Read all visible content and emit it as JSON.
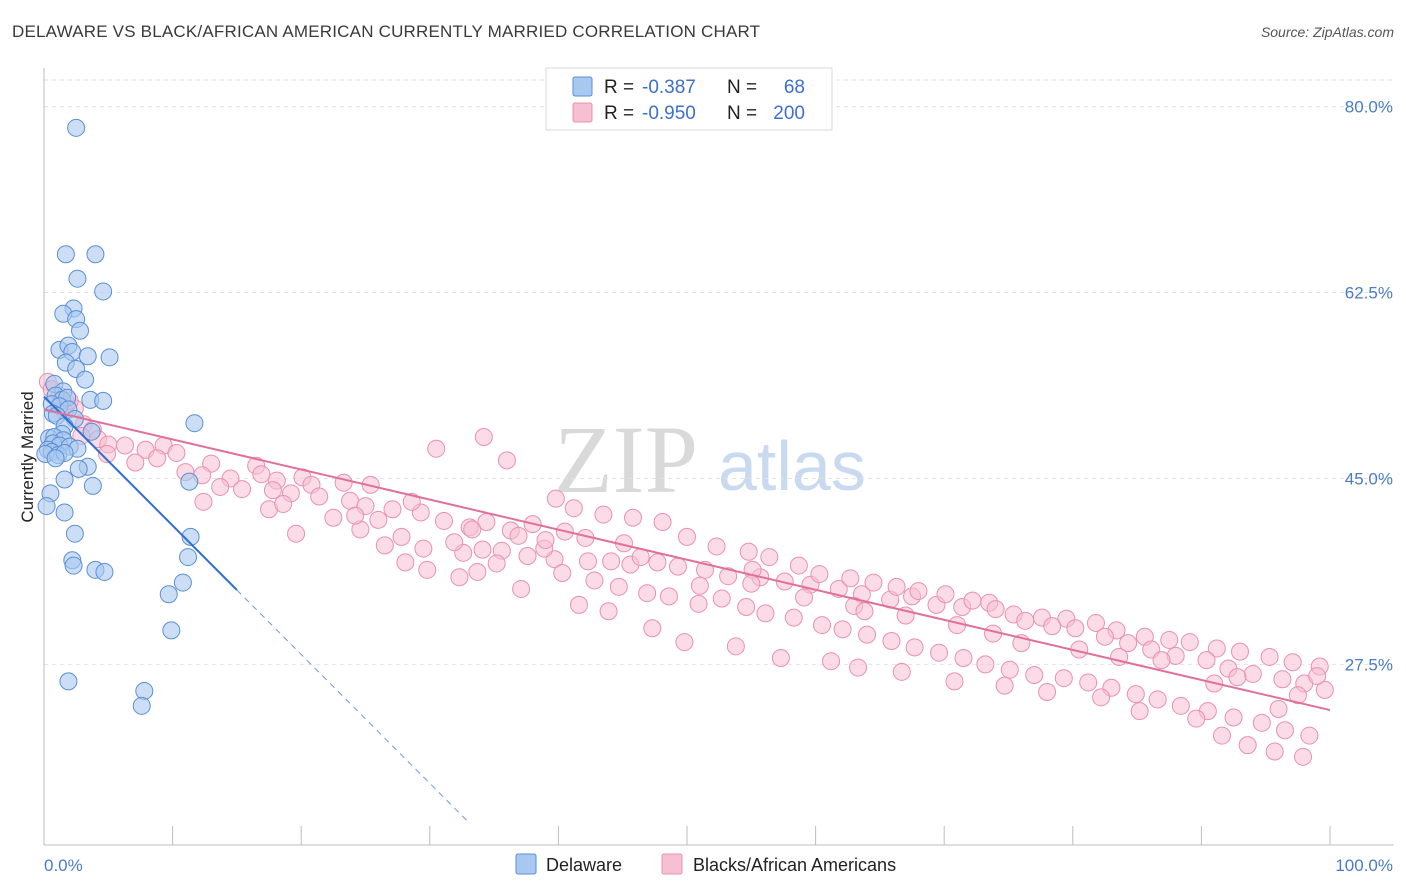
{
  "header": {
    "title": "DELAWARE VS BLACK/AFRICAN AMERICAN CURRENTLY MARRIED CORRELATION CHART",
    "source": "Source: ZipAtlas.com"
  },
  "watermark": {
    "zip": "ZIP",
    "atlas": "atlas"
  },
  "colors": {
    "blue_fill": "#a9c8ef",
    "blue_stroke": "#5b8fd6",
    "blue_line": "#2e6fd0",
    "pink_fill": "#f7bfd2",
    "pink_stroke": "#e990b0",
    "pink_line": "#e0709a",
    "grid": "#e2e2e2",
    "tick_label": "#4a7cc7"
  },
  "legend": {
    "rows": [
      {
        "r_label": "R =",
        "r_value": "-0.387",
        "n_label": "N =",
        "n_value": "68"
      },
      {
        "r_label": "R =",
        "r_value": "-0.950",
        "n_label": "N =",
        "n_value": "200"
      }
    ]
  },
  "chart_data": {
    "type": "scatter",
    "title": "DELAWARE VS BLACK/AFRICAN AMERICAN CURRENTLY MARRIED CORRELATION CHART",
    "ylabel": "Currently Married",
    "xlabel": "",
    "x_tick_labels": [
      "0.0%",
      "100.0%"
    ],
    "y_tick_labels": [
      "80.0%",
      "62.5%",
      "45.0%",
      "27.5%"
    ],
    "y_ticks": [
      80.0,
      62.5,
      45.0,
      27.5
    ],
    "xlim": [
      0,
      100
    ],
    "ylim": [
      10.5,
      82.5
    ],
    "grid": true,
    "legend_position": "top-center",
    "series": [
      {
        "name": "Delaware",
        "r": -0.387,
        "n": 68,
        "trend": {
          "x0": 0.0,
          "y0": 52.7,
          "x1": 15.0,
          "y1": 34.5,
          "dash_to_x": 33.0
        },
        "points": [
          [
            2.5,
            78.0
          ],
          [
            1.7,
            66.1
          ],
          [
            4.0,
            66.1
          ],
          [
            2.6,
            63.8
          ],
          [
            4.6,
            62.6
          ],
          [
            2.3,
            61.0
          ],
          [
            1.5,
            60.5
          ],
          [
            2.5,
            60.0
          ],
          [
            2.8,
            58.9
          ],
          [
            1.2,
            57.1
          ],
          [
            1.9,
            57.5
          ],
          [
            2.2,
            56.9
          ],
          [
            3.4,
            56.5
          ],
          [
            5.1,
            56.4
          ],
          [
            1.7,
            55.9
          ],
          [
            2.5,
            55.3
          ],
          [
            3.2,
            54.3
          ],
          [
            0.8,
            53.9
          ],
          [
            1.5,
            53.2
          ],
          [
            0.9,
            52.8
          ],
          [
            1.4,
            52.4
          ],
          [
            1.8,
            52.6
          ],
          [
            3.6,
            52.4
          ],
          [
            4.6,
            52.3
          ],
          [
            0.6,
            52.0
          ],
          [
            1.2,
            51.8
          ],
          [
            1.9,
            51.5
          ],
          [
            0.7,
            51.1
          ],
          [
            1.0,
            50.9
          ],
          [
            2.4,
            50.6
          ],
          [
            11.7,
            50.2
          ],
          [
            1.6,
            49.9
          ],
          [
            3.7,
            49.4
          ],
          [
            1.4,
            49.2
          ],
          [
            0.4,
            48.8
          ],
          [
            0.8,
            48.9
          ],
          [
            1.5,
            48.6
          ],
          [
            0.7,
            48.3
          ],
          [
            1.2,
            48.1
          ],
          [
            2.0,
            48.0
          ],
          [
            2.6,
            47.8
          ],
          [
            0.3,
            47.7
          ],
          [
            0.6,
            47.5
          ],
          [
            0.1,
            47.3
          ],
          [
            1.1,
            47.2
          ],
          [
            1.6,
            47.4
          ],
          [
            0.9,
            46.9
          ],
          [
            3.4,
            46.1
          ],
          [
            2.7,
            45.9
          ],
          [
            1.6,
            44.9
          ],
          [
            11.3,
            44.7
          ],
          [
            3.8,
            44.3
          ],
          [
            0.5,
            43.6
          ],
          [
            0.2,
            42.4
          ],
          [
            1.6,
            41.8
          ],
          [
            2.4,
            39.8
          ],
          [
            11.4,
            39.5
          ],
          [
            11.2,
            37.6
          ],
          [
            2.2,
            37.3
          ],
          [
            2.3,
            36.8
          ],
          [
            4.0,
            36.4
          ],
          [
            4.7,
            36.2
          ],
          [
            10.8,
            35.2
          ],
          [
            9.7,
            34.1
          ],
          [
            9.9,
            30.7
          ],
          [
            1.9,
            25.9
          ],
          [
            7.8,
            25.0
          ],
          [
            7.6,
            23.6
          ]
        ]
      },
      {
        "name": "Blacks/African Americans",
        "r": -0.95,
        "n": 200,
        "trend": {
          "x0": 0.0,
          "y0": 51.5,
          "x1": 100.0,
          "y1": 23.2
        },
        "points": [
          [
            0.3,
            54.1
          ],
          [
            0.6,
            53.4
          ],
          [
            1.2,
            52.8
          ],
          [
            1.8,
            52.0
          ],
          [
            2.4,
            51.6
          ],
          [
            1.6,
            51.3
          ],
          [
            3.1,
            50.1
          ],
          [
            3.8,
            49.6
          ],
          [
            2.9,
            49.0
          ],
          [
            4.2,
            48.7
          ],
          [
            5.0,
            48.2
          ],
          [
            6.3,
            48.1
          ],
          [
            7.9,
            47.7
          ],
          [
            9.3,
            48.1
          ],
          [
            10.3,
            47.4
          ],
          [
            4.9,
            47.3
          ],
          [
            8.8,
            46.9
          ],
          [
            7.1,
            46.5
          ],
          [
            13.0,
            46.4
          ],
          [
            16.5,
            46.2
          ],
          [
            11.0,
            45.6
          ],
          [
            12.3,
            45.3
          ],
          [
            14.5,
            45.0
          ],
          [
            16.9,
            45.4
          ],
          [
            18.1,
            44.8
          ],
          [
            20.1,
            45.1
          ],
          [
            20.8,
            44.4
          ],
          [
            23.3,
            44.6
          ],
          [
            25.4,
            44.4
          ],
          [
            13.7,
            44.2
          ],
          [
            17.8,
            43.9
          ],
          [
            19.2,
            43.6
          ],
          [
            21.4,
            43.3
          ],
          [
            23.8,
            42.9
          ],
          [
            25.0,
            42.4
          ],
          [
            27.1,
            42.1
          ],
          [
            29.3,
            41.8
          ],
          [
            12.4,
            42.8
          ],
          [
            17.5,
            42.1
          ],
          [
            28.6,
            42.8
          ],
          [
            26.0,
            41.1
          ],
          [
            31.1,
            41.0
          ],
          [
            33.1,
            40.4
          ],
          [
            34.4,
            40.9
          ],
          [
            36.3,
            40.1
          ],
          [
            38.0,
            40.7
          ],
          [
            36.9,
            39.6
          ],
          [
            40.5,
            40.0
          ],
          [
            42.1,
            39.4
          ],
          [
            34.1,
            38.3
          ],
          [
            29.5,
            38.4
          ],
          [
            32.6,
            38.0
          ],
          [
            35.6,
            38.2
          ],
          [
            37.6,
            37.7
          ],
          [
            39.7,
            37.4
          ],
          [
            42.3,
            37.2
          ],
          [
            44.1,
            37.2
          ],
          [
            45.6,
            36.9
          ],
          [
            47.7,
            37.1
          ],
          [
            49.3,
            36.7
          ],
          [
            51.4,
            36.4
          ],
          [
            53.2,
            35.8
          ],
          [
            55.7,
            35.7
          ],
          [
            57.6,
            35.3
          ],
          [
            59.6,
            35.0
          ],
          [
            61.8,
            34.6
          ],
          [
            63.6,
            34.1
          ],
          [
            65.8,
            33.6
          ],
          [
            67.5,
            33.9
          ],
          [
            69.4,
            33.1
          ],
          [
            71.4,
            32.9
          ],
          [
            73.5,
            33.3
          ],
          [
            75.4,
            32.2
          ],
          [
            77.6,
            31.9
          ],
          [
            79.5,
            31.8
          ],
          [
            81.8,
            31.4
          ],
          [
            83.4,
            30.7
          ],
          [
            85.6,
            30.1
          ],
          [
            87.5,
            29.8
          ],
          [
            89.1,
            29.6
          ],
          [
            91.2,
            29.0
          ],
          [
            93.0,
            28.7
          ],
          [
            95.3,
            28.2
          ],
          [
            97.1,
            27.7
          ],
          [
            99.2,
            27.3
          ],
          [
            30.5,
            47.8
          ],
          [
            34.2,
            48.9
          ],
          [
            36.0,
            46.7
          ],
          [
            39.8,
            43.1
          ],
          [
            41.2,
            42.2
          ],
          [
            43.5,
            41.6
          ],
          [
            45.8,
            41.3
          ],
          [
            48.1,
            40.9
          ],
          [
            50.0,
            39.5
          ],
          [
            52.3,
            38.6
          ],
          [
            54.8,
            38.1
          ],
          [
            56.4,
            37.6
          ],
          [
            58.7,
            36.8
          ],
          [
            60.3,
            36.0
          ],
          [
            62.7,
            35.6
          ],
          [
            64.5,
            35.2
          ],
          [
            66.3,
            34.8
          ],
          [
            68.0,
            34.4
          ],
          [
            70.1,
            34.1
          ],
          [
            72.2,
            33.5
          ],
          [
            74.0,
            32.7
          ],
          [
            76.3,
            31.6
          ],
          [
            78.4,
            31.1
          ],
          [
            80.2,
            30.9
          ],
          [
            82.5,
            30.1
          ],
          [
            84.3,
            29.5
          ],
          [
            86.1,
            28.9
          ],
          [
            88.0,
            28.3
          ],
          [
            90.4,
            27.9
          ],
          [
            92.1,
            27.1
          ],
          [
            94.0,
            26.6
          ],
          [
            96.3,
            26.1
          ],
          [
            98.0,
            25.7
          ],
          [
            99.6,
            25.1
          ],
          [
            31.9,
            39.0
          ],
          [
            33.7,
            36.2
          ],
          [
            35.2,
            37.0
          ],
          [
            38.9,
            38.4
          ],
          [
            40.3,
            36.1
          ],
          [
            42.8,
            35.4
          ],
          [
            44.7,
            34.8
          ],
          [
            46.9,
            34.2
          ],
          [
            48.6,
            33.9
          ],
          [
            50.9,
            33.2
          ],
          [
            52.7,
            33.7
          ],
          [
            54.6,
            32.9
          ],
          [
            56.1,
            32.3
          ],
          [
            58.3,
            31.9
          ],
          [
            60.5,
            31.2
          ],
          [
            62.1,
            30.8
          ],
          [
            64.0,
            30.3
          ],
          [
            65.9,
            29.7
          ],
          [
            67.7,
            29.1
          ],
          [
            69.6,
            28.6
          ],
          [
            71.5,
            28.1
          ],
          [
            73.2,
            27.5
          ],
          [
            75.1,
            27.0
          ],
          [
            77.0,
            26.5
          ],
          [
            79.3,
            26.2
          ],
          [
            81.2,
            25.8
          ],
          [
            83.0,
            25.3
          ],
          [
            84.9,
            24.7
          ],
          [
            86.6,
            24.2
          ],
          [
            88.4,
            23.6
          ],
          [
            90.5,
            23.1
          ],
          [
            92.5,
            22.5
          ],
          [
            94.7,
            22.0
          ],
          [
            96.5,
            21.3
          ],
          [
            98.4,
            20.8
          ],
          [
            19.6,
            39.8
          ],
          [
            22.5,
            41.3
          ],
          [
            24.6,
            40.2
          ],
          [
            27.8,
            39.5
          ],
          [
            29.8,
            36.4
          ],
          [
            32.3,
            35.7
          ],
          [
            37.1,
            34.6
          ],
          [
            41.6,
            33.1
          ],
          [
            43.9,
            32.5
          ],
          [
            47.3,
            30.9
          ],
          [
            49.8,
            29.6
          ],
          [
            53.8,
            29.2
          ],
          [
            57.3,
            28.1
          ],
          [
            61.2,
            27.8
          ],
          [
            63.3,
            27.2
          ],
          [
            66.7,
            26.8
          ],
          [
            70.8,
            25.9
          ],
          [
            74.7,
            25.5
          ],
          [
            78.0,
            24.9
          ],
          [
            82.2,
            24.4
          ],
          [
            85.2,
            23.1
          ],
          [
            89.6,
            22.4
          ],
          [
            91.6,
            20.8
          ],
          [
            93.6,
            19.9
          ],
          [
            95.7,
            19.3
          ],
          [
            97.9,
            18.8
          ],
          [
            26.5,
            38.7
          ],
          [
            28.1,
            37.1
          ],
          [
            45.1,
            38.9
          ],
          [
            51.0,
            34.9
          ],
          [
            55.1,
            36.4
          ],
          [
            59.1,
            33.8
          ],
          [
            63.0,
            33.0
          ],
          [
            67.0,
            32.1
          ],
          [
            71.0,
            31.2
          ],
          [
            76.0,
            29.5
          ],
          [
            80.5,
            28.9
          ],
          [
            86.9,
            27.9
          ],
          [
            92.8,
            26.3
          ],
          [
            97.5,
            24.6
          ],
          [
            15.4,
            44.0
          ],
          [
            18.6,
            42.6
          ],
          [
            24.2,
            41.5
          ],
          [
            33.3,
            40.2
          ],
          [
            39.0,
            39.2
          ],
          [
            46.4,
            37.6
          ],
          [
            55.0,
            35.1
          ],
          [
            63.8,
            32.5
          ],
          [
            73.8,
            30.4
          ],
          [
            83.6,
            28.2
          ],
          [
            91.0,
            25.7
          ],
          [
            96.0,
            23.3
          ],
          [
            99.0,
            26.4
          ],
          [
            2.0,
            52.3
          ]
        ]
      }
    ]
  },
  "bottom_legend": {
    "items": [
      {
        "label": "Delaware"
      },
      {
        "label": "Blacks/African Americans"
      }
    ]
  }
}
